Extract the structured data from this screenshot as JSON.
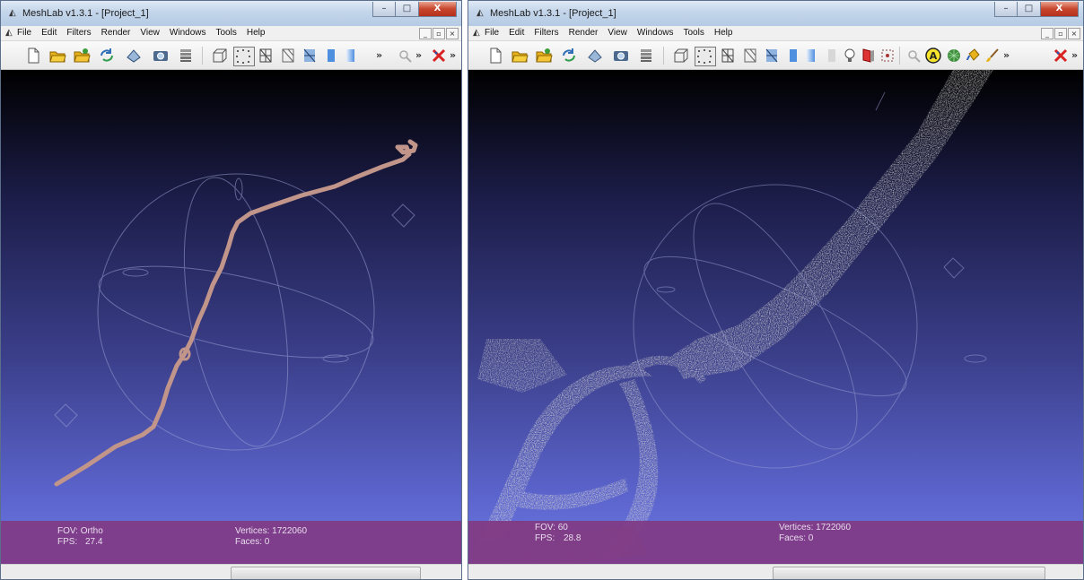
{
  "left": {
    "title": "MeshLab v1.3.1 - [Project_1]",
    "menus": [
      "File",
      "Edit",
      "Filters",
      "Render",
      "View",
      "Windows",
      "Tools",
      "Help"
    ],
    "fov_label": "FOV: Ortho",
    "fps_label": "FPS:",
    "fps_value": "27.4",
    "vertices_label": "Vertices: 1722060",
    "faces_label": "Faces: 0"
  },
  "right": {
    "title": "MeshLab v1.3.1 - [Project_1]",
    "menus": [
      "File",
      "Edit",
      "Filters",
      "Render",
      "View",
      "Windows",
      "Tools",
      "Help"
    ],
    "fov_label": "FOV: 60",
    "fps_label": "FPS:",
    "fps_value": "28.8",
    "vertices_label": "Vertices: 1722060",
    "faces_label": "Faces: 0"
  },
  "caption_buttons": {
    "minimize": "–",
    "maximize": "□",
    "close": "X"
  },
  "mdi_buttons": {
    "minimize": "_",
    "restore": "▫",
    "close": "×"
  },
  "toolbar_overflow": "»",
  "colors": {
    "track": "#c2958b",
    "point_cloud": "#cfcfcf",
    "trackball": "#9a9fd0",
    "info_band": "#803a84"
  },
  "icons": {
    "toolbar": [
      "new-icon",
      "open-icon",
      "open-project-icon",
      "reload-icon",
      "import-icon",
      "snapshot-icon",
      "layers-icon",
      "bbox-icon",
      "points-icon",
      "wireframe-icon",
      "hidden-lines-icon",
      "flat-lines-icon",
      "flat-icon",
      "smooth-icon"
    ]
  }
}
